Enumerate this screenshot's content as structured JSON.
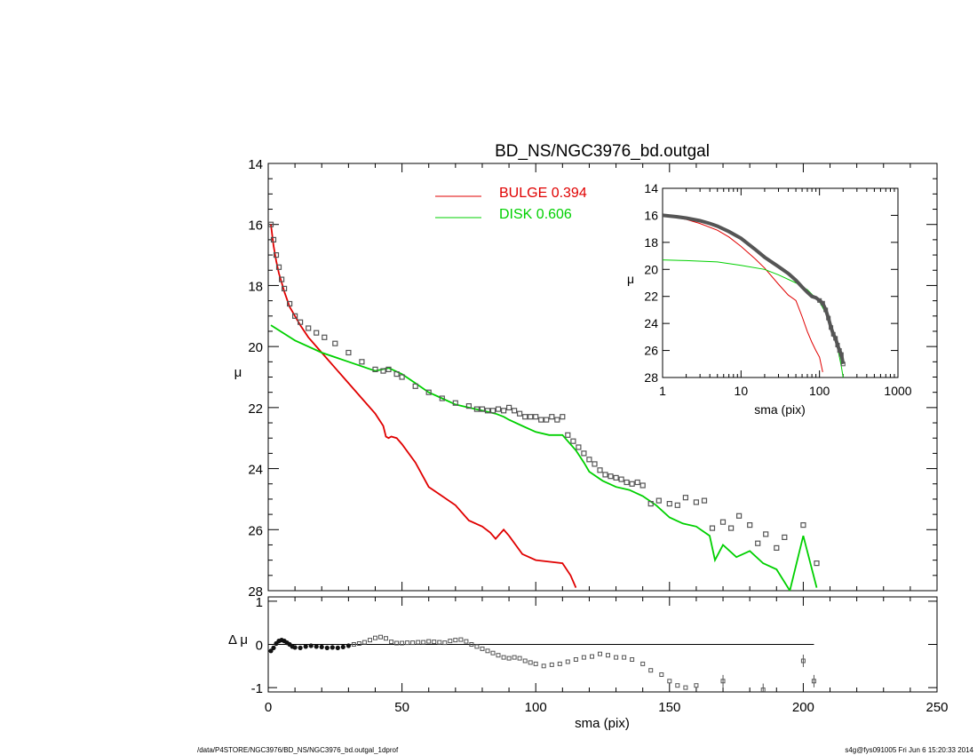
{
  "footer": {
    "left": "/data/P4STORE/NGC3976/BD_NS/NGC3976_bd.outgal_1dprof",
    "right": "s4g@fys091005  Fri Jun  6 15:20:33 2014"
  },
  "chart_data": [
    {
      "id": "main",
      "type": "line",
      "title": "BD_NS/NGC3976_bd.outgal",
      "xlabel": "",
      "ylabel": "μ",
      "xlim": [
        0,
        250
      ],
      "ylim": [
        28,
        14
      ],
      "y_inverted": true,
      "yticks": [
        14,
        16,
        18,
        20,
        22,
        24,
        26,
        28
      ],
      "legend": {
        "placement": "top-center"
      },
      "colors": {
        "bulge": "#e00000",
        "disk": "#00d000",
        "data": "#555555"
      },
      "series": [
        {
          "name": "BULGE  0.394",
          "key": "bulge",
          "x": [
            1,
            2,
            3,
            4,
            5,
            6,
            8,
            10,
            12,
            15,
            18,
            21,
            25,
            30,
            35,
            40,
            43,
            44,
            45,
            46,
            48,
            50,
            55,
            60,
            65,
            70,
            75,
            80,
            83,
            85,
            88,
            90,
            95,
            100,
            105,
            110,
            113,
            115
          ],
          "y": [
            16.0,
            16.7,
            17.2,
            17.6,
            17.9,
            18.2,
            18.7,
            19.0,
            19.3,
            19.7,
            20.0,
            20.3,
            20.7,
            21.2,
            21.7,
            22.2,
            22.6,
            22.95,
            23.0,
            22.95,
            23.0,
            23.2,
            23.8,
            24.6,
            24.9,
            25.2,
            25.7,
            25.9,
            26.1,
            26.3,
            26.0,
            26.2,
            26.8,
            27.0,
            27.05,
            27.1,
            27.5,
            27.9
          ]
        },
        {
          "name": "DISK  0.606",
          "key": "disk",
          "x": [
            1,
            10,
            20,
            30,
            40,
            45,
            50,
            55,
            60,
            65,
            70,
            75,
            80,
            85,
            88,
            90,
            95,
            100,
            105,
            110,
            112,
            115,
            118,
            120,
            125,
            130,
            135,
            140,
            145,
            150,
            155,
            160,
            165,
            167,
            170,
            175,
            180,
            185,
            190,
            195,
            200,
            205
          ],
          "y": [
            19.3,
            19.8,
            20.2,
            20.5,
            20.8,
            20.7,
            20.9,
            21.2,
            21.5,
            21.7,
            21.9,
            22.0,
            22.1,
            22.2,
            22.3,
            22.4,
            22.6,
            22.8,
            22.9,
            22.9,
            23.1,
            23.4,
            23.8,
            24.1,
            24.4,
            24.6,
            24.7,
            24.9,
            25.2,
            25.6,
            25.8,
            25.9,
            26.2,
            27.0,
            26.5,
            26.9,
            26.7,
            27.1,
            27.3,
            28.0,
            26.2,
            27.9
          ]
        },
        {
          "name": "",
          "key": "data",
          "x": [
            1,
            2,
            3,
            4,
            5,
            6,
            8,
            10,
            12,
            15,
            18,
            21,
            25,
            30,
            35,
            40,
            43,
            45,
            48,
            50,
            55,
            60,
            65,
            70,
            75,
            78,
            80,
            82,
            84,
            86,
            88,
            90,
            92,
            94,
            96,
            98,
            100,
            102,
            104,
            106,
            108,
            110,
            112,
            114,
            116,
            118,
            120,
            122,
            124,
            126,
            128,
            130,
            132,
            134,
            136,
            138,
            140,
            143,
            146,
            150,
            153,
            156,
            160,
            163,
            166,
            170,
            173,
            176,
            180,
            183,
            186,
            190,
            193,
            200,
            205
          ],
          "y": [
            16.0,
            16.5,
            17.0,
            17.4,
            17.8,
            18.1,
            18.6,
            19.0,
            19.2,
            19.4,
            19.55,
            19.7,
            19.9,
            20.2,
            20.5,
            20.75,
            20.8,
            20.75,
            20.9,
            21.0,
            21.3,
            21.5,
            21.7,
            21.85,
            21.95,
            22.05,
            22.05,
            22.1,
            22.1,
            22.05,
            22.1,
            22.0,
            22.1,
            22.2,
            22.3,
            22.3,
            22.3,
            22.4,
            22.4,
            22.3,
            22.4,
            22.3,
            22.9,
            23.1,
            23.3,
            23.5,
            23.7,
            23.85,
            24.05,
            24.2,
            24.25,
            24.3,
            24.35,
            24.45,
            24.5,
            24.45,
            24.55,
            25.15,
            25.05,
            25.15,
            25.2,
            24.95,
            25.1,
            25.05,
            25.95,
            25.75,
            25.95,
            25.55,
            25.85,
            26.45,
            26.15,
            26.6,
            26.25,
            25.85,
            27.1
          ]
        }
      ]
    },
    {
      "id": "inset",
      "type": "line",
      "xscale": "log",
      "xlabel": "sma (pix)",
      "ylabel": "μ",
      "xlim": [
        1,
        1000
      ],
      "ylim": [
        28,
        14
      ],
      "y_inverted": true,
      "xticks": [
        1,
        10,
        100,
        1000
      ],
      "yticks": [
        14,
        16,
        18,
        20,
        22,
        24,
        26,
        28
      ],
      "series": [
        {
          "key": "bulge",
          "x": [
            1,
            2,
            3,
            5,
            7,
            10,
            15,
            20,
            30,
            40,
            50,
            60,
            70,
            80,
            90,
            100,
            110
          ],
          "y": [
            16.0,
            16.3,
            16.6,
            17.1,
            17.6,
            18.3,
            19.2,
            19.9,
            21.1,
            21.9,
            22.3,
            23.5,
            24.6,
            25.4,
            26.0,
            26.5,
            27.6
          ]
        },
        {
          "key": "disk",
          "x": [
            1,
            2,
            5,
            10,
            20,
            30,
            50,
            70,
            100,
            130,
            150,
            170,
            190,
            200
          ],
          "y": [
            19.3,
            19.35,
            19.45,
            19.7,
            20.0,
            20.4,
            21.0,
            21.5,
            22.4,
            23.6,
            24.6,
            25.8,
            27.2,
            28.0
          ]
        },
        {
          "key": "data",
          "x": [
            1,
            1.5,
            2,
            3,
            4,
            5,
            7,
            10,
            15,
            20,
            30,
            40,
            50,
            60,
            70,
            80,
            90,
            100,
            110,
            120,
            130,
            140,
            150,
            160,
            170,
            180,
            190,
            200
          ],
          "y": [
            16.0,
            16.1,
            16.2,
            16.4,
            16.6,
            16.8,
            17.2,
            17.7,
            18.5,
            19.1,
            19.8,
            20.3,
            20.8,
            21.3,
            21.7,
            22.0,
            22.1,
            22.3,
            22.5,
            23.0,
            23.6,
            24.3,
            24.8,
            25.1,
            25.6,
            26.0,
            26.3,
            27.0
          ]
        }
      ]
    },
    {
      "id": "residual",
      "type": "scatter",
      "xlabel": "sma (pix)",
      "ylabel": "Δ μ",
      "xlim": [
        0,
        250
      ],
      "ylim": [
        -1.1,
        1.1
      ],
      "xticks": [
        0,
        50,
        100,
        150,
        200,
        250
      ],
      "yticks": [
        -1,
        0,
        1
      ],
      "zero_line_x": [
        0,
        204
      ],
      "series": [
        {
          "key": "residual",
          "x": [
            1,
            2,
            3,
            4,
            5,
            6,
            7,
            8,
            9,
            10,
            12,
            14,
            16,
            18,
            20,
            22,
            24,
            26,
            28,
            30,
            32,
            34,
            36,
            38,
            40,
            42,
            44,
            46,
            48,
            50,
            52,
            54,
            56,
            58,
            60,
            62,
            64,
            66,
            68,
            70,
            72,
            74,
            76,
            78,
            80,
            82,
            84,
            86,
            88,
            90,
            92,
            94,
            96,
            98,
            100,
            103,
            106,
            109,
            112,
            115,
            118,
            121,
            124,
            127,
            130,
            133,
            136,
            140,
            143,
            147,
            150,
            153,
            156,
            160,
            170,
            185,
            200,
            204
          ],
          "y": [
            -0.15,
            -0.08,
            0.02,
            0.08,
            0.1,
            0.08,
            0.04,
            0.0,
            -0.05,
            -0.07,
            -0.08,
            -0.05,
            -0.03,
            -0.05,
            -0.06,
            -0.08,
            -0.07,
            -0.08,
            -0.06,
            -0.03,
            0.0,
            0.02,
            0.05,
            0.1,
            0.15,
            0.17,
            0.14,
            0.06,
            0.03,
            0.03,
            0.04,
            0.04,
            0.05,
            0.05,
            0.07,
            0.06,
            0.05,
            0.04,
            0.08,
            0.1,
            0.11,
            0.07,
            0.0,
            -0.05,
            -0.1,
            -0.15,
            -0.2,
            -0.25,
            -0.3,
            -0.32,
            -0.3,
            -0.32,
            -0.38,
            -0.42,
            -0.45,
            -0.5,
            -0.47,
            -0.45,
            -0.4,
            -0.35,
            -0.3,
            -0.28,
            -0.22,
            -0.25,
            -0.3,
            -0.3,
            -0.35,
            -0.45,
            -0.6,
            -0.7,
            -0.85,
            -0.95,
            -1.0,
            -0.95,
            -0.85,
            -1.05,
            -0.38,
            -0.85
          ]
        }
      ]
    }
  ]
}
